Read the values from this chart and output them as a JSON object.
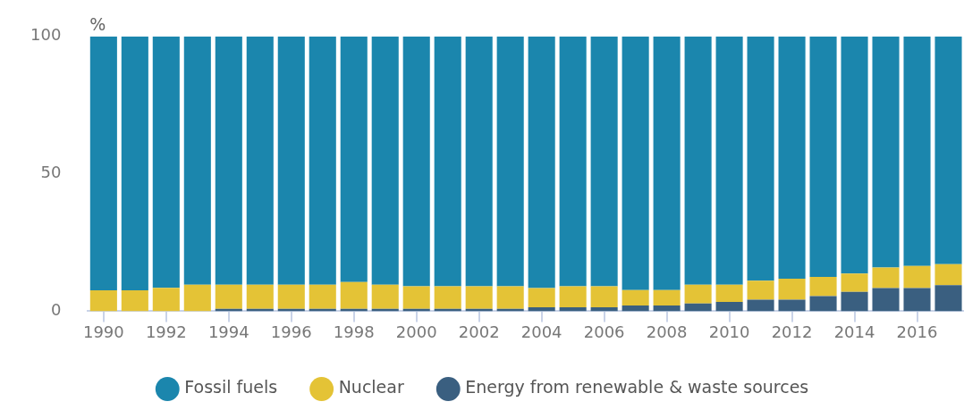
{
  "chart_data": {
    "type": "bar",
    "stacked": true,
    "ylabel": "%",
    "categories": [
      "1990",
      null,
      "1992",
      null,
      "1994",
      null,
      "1996",
      null,
      "1998",
      null,
      "2000",
      null,
      "2002",
      null,
      "2004",
      null,
      "2006",
      null,
      "2008",
      null,
      "2010",
      null,
      "2012",
      null,
      "2014",
      null,
      "2016",
      null
    ],
    "series": [
      {
        "name": "Energy from renewable & waste sources",
        "color": "#3a5f80",
        "values": [
          0,
          0,
          0,
          0,
          0.9,
          0.9,
          0.9,
          0.9,
          0.9,
          0.9,
          0.9,
          0.9,
          0.9,
          0.9,
          1.4,
          1.4,
          1.4,
          2.1,
          2.1,
          2.8,
          3.4,
          4.2,
          4.2,
          5.5,
          7.0,
          8.4,
          8.4,
          9.5
        ]
      },
      {
        "name": "Nuclear",
        "color": "#e4c336",
        "values": [
          7.6,
          7.6,
          8.5,
          9.6,
          8.7,
          8.7,
          8.7,
          8.7,
          9.7,
          8.7,
          8.2,
          8.2,
          8.2,
          8.2,
          7.0,
          7.7,
          7.7,
          5.6,
          5.6,
          6.8,
          6.2,
          6.9,
          7.6,
          7.0,
          6.7,
          7.5,
          8.1,
          7.6
        ]
      },
      {
        "name": "Fossil fuels",
        "color": "#1b86ad",
        "values": [
          92.4,
          92.4,
          91.5,
          90.4,
          90.4,
          90.4,
          90.4,
          90.4,
          89.4,
          90.4,
          90.9,
          90.9,
          90.9,
          90.9,
          91.6,
          90.9,
          90.9,
          92.3,
          92.3,
          90.4,
          90.4,
          88.9,
          88.2,
          87.5,
          86.3,
          84.1,
          83.5,
          82.9
        ]
      }
    ],
    "ylim": [
      0,
      100
    ],
    "yticks": [
      0,
      50,
      100
    ],
    "grid": false,
    "legend": "bottom"
  }
}
